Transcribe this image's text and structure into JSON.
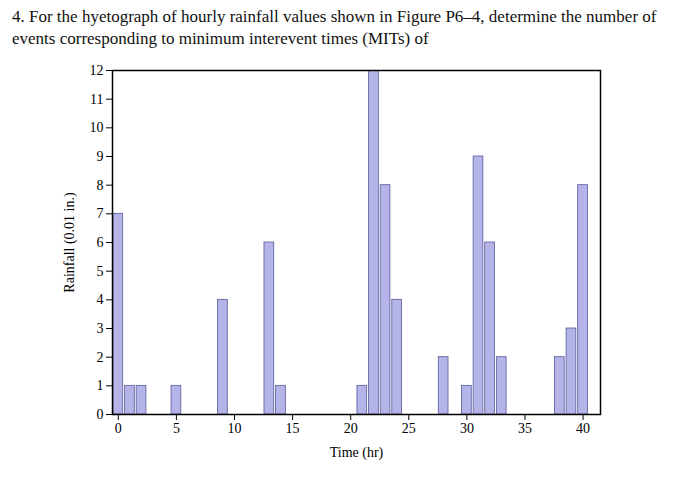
{
  "chart_data": {
    "type": "bar",
    "title": "4. For the hyetograph of hourly rainfall values shown in Figure P6–4, determine the number of events corresponding to minimum interevent times (MITs) of",
    "x_label": "Time (hr)",
    "y_label": "Rainfall (0.01 in.)",
    "x": [
      0,
      1,
      2,
      3,
      4,
      5,
      6,
      7,
      8,
      9,
      10,
      11,
      12,
      13,
      14,
      15,
      16,
      17,
      18,
      19,
      20,
      21,
      22,
      23,
      24,
      25,
      26,
      27,
      28,
      29,
      30,
      31,
      32,
      33,
      34,
      35,
      36,
      37,
      38,
      39,
      40
    ],
    "values": [
      7,
      1,
      1,
      0,
      0,
      1,
      0,
      0,
      0,
      4,
      0,
      0,
      0,
      6,
      1,
      0,
      0,
      0,
      0,
      0,
      0,
      1,
      12,
      8,
      4,
      0,
      0,
      0,
      2,
      0,
      1,
      9,
      6,
      2,
      0,
      0,
      0,
      0,
      2,
      3,
      8
    ],
    "color": "#b4b4e8",
    "xlim": [
      -0.5,
      41.5
    ],
    "xticks": [
      0,
      5,
      10,
      15,
      20,
      25,
      30,
      35,
      40
    ],
    "ylim": [
      0,
      12
    ],
    "yticks": [
      0,
      1,
      2,
      3,
      4,
      5,
      6,
      7,
      8,
      9,
      10,
      11,
      12
    ],
    "grid": false
  }
}
